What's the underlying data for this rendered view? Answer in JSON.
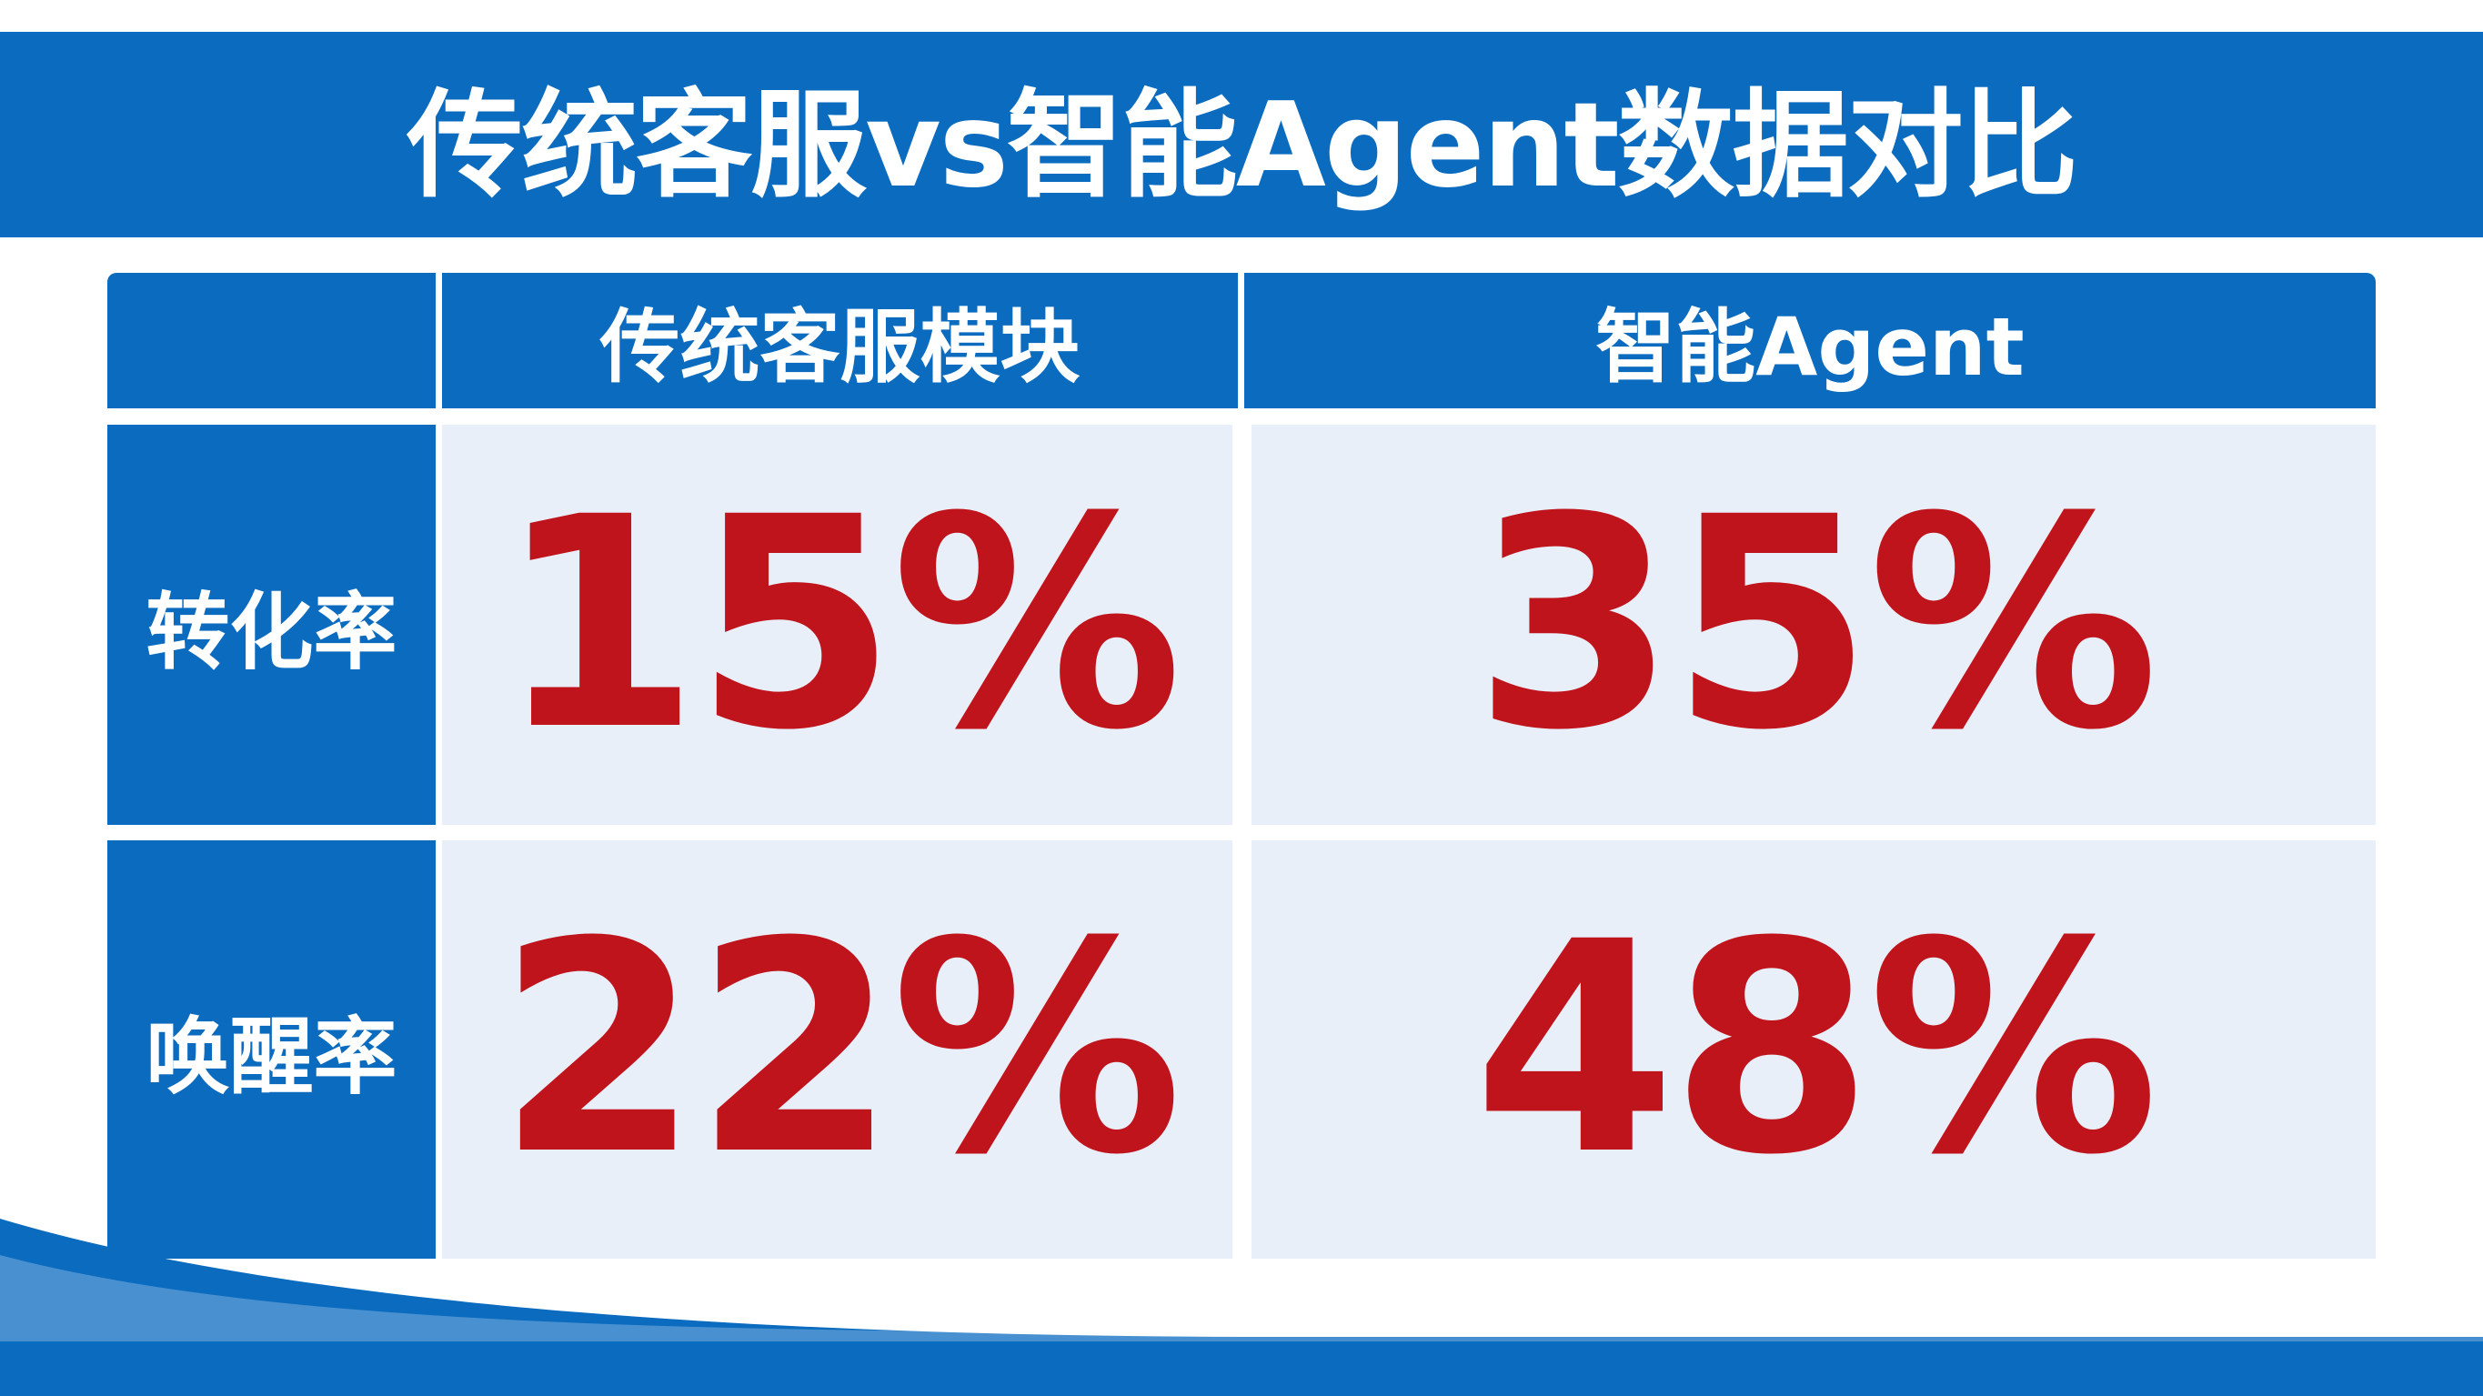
{
  "title": "传统客服vs智能Agent数据对比",
  "table": {
    "header": [
      "传统客服模块",
      "智能Agent"
    ],
    "rows": [
      [
        "转化率",
        "15%",
        "35%"
      ],
      [
        "唤醒率",
        "22%",
        "48%"
      ]
    ]
  }
}
